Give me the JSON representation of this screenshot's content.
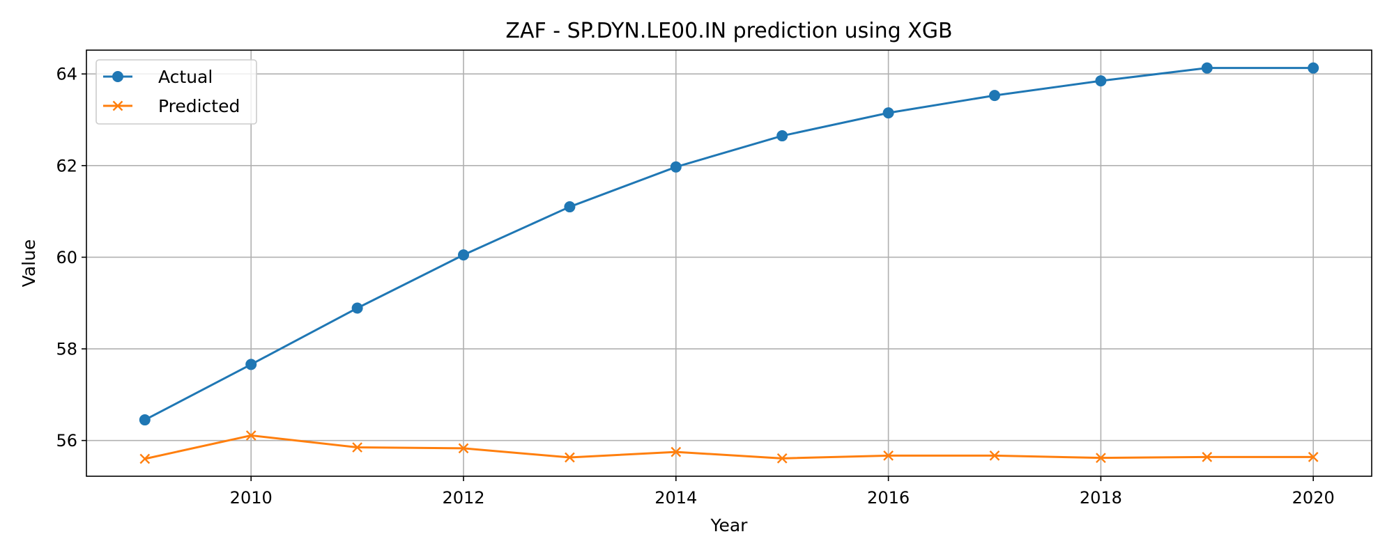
{
  "chart_data": {
    "type": "line",
    "title": "ZAF - SP.DYN.LE00.IN prediction using XGB",
    "xlabel": "Year",
    "ylabel": "Value",
    "x": [
      2009,
      2010,
      2011,
      2012,
      2013,
      2014,
      2015,
      2016,
      2017,
      2018,
      2019,
      2020
    ],
    "xlim": [
      2008.45,
      2020.55
    ],
    "ylim": [
      55.22,
      64.52
    ],
    "xticks": [
      2010,
      2012,
      2014,
      2016,
      2018,
      2020
    ],
    "yticks": [
      56,
      58,
      60,
      62,
      64
    ],
    "grid": true,
    "legend_position": "top-left",
    "series": [
      {
        "name": "Actual",
        "color": "#1f77b4",
        "marker": "circle",
        "values": [
          56.45,
          57.66,
          58.89,
          60.05,
          61.1,
          61.97,
          62.65,
          63.15,
          63.53,
          63.85,
          64.13,
          64.13
        ]
      },
      {
        "name": "Predicted",
        "color": "#ff7f0e",
        "marker": "x",
        "values": [
          55.6,
          56.11,
          55.85,
          55.83,
          55.63,
          55.75,
          55.61,
          55.67,
          55.67,
          55.62,
          55.64,
          55.64
        ]
      }
    ]
  }
}
